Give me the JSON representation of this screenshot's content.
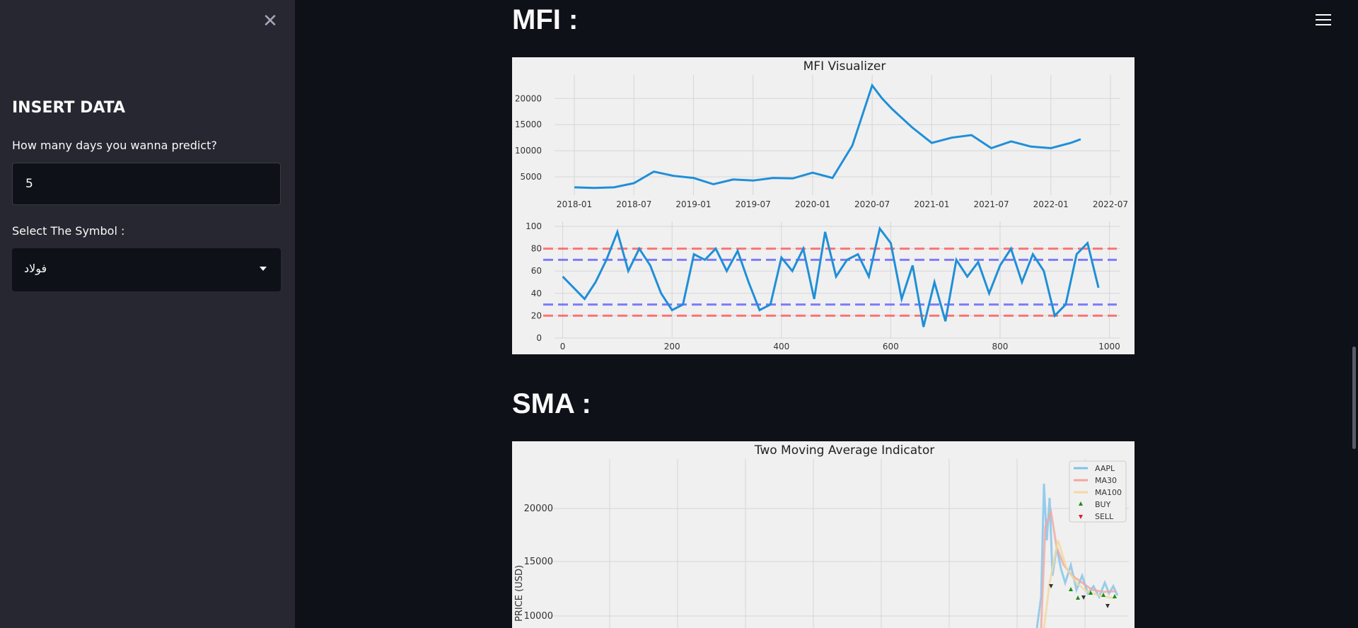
{
  "sidebar": {
    "close_icon": "close-icon",
    "title": "INSERT DATA",
    "days_label": "How many days you wanna predict?",
    "days_value": "5",
    "symbol_label": "Select The Symbol :",
    "symbol_value": "فولاد"
  },
  "main": {
    "mfi_heading": "MFI :",
    "sma_heading": "SMA :"
  },
  "colors": {
    "line": "#1f8fd8",
    "red_dash": "#ff5a5a",
    "blue_dash": "#6060ff"
  },
  "chart_data": [
    {
      "type": "line",
      "title": "MFI Visualizer",
      "x": [
        "2018-01",
        "2018-03",
        "2018-05",
        "2018-07",
        "2018-09",
        "2018-11",
        "2019-01",
        "2019-03",
        "2019-05",
        "2019-07",
        "2019-09",
        "2019-11",
        "2020-01",
        "2020-03",
        "2020-05",
        "2020-07",
        "2020-08",
        "2020-09",
        "2020-11",
        "2021-01",
        "2021-03",
        "2021-05",
        "2021-07",
        "2021-09",
        "2021-11",
        "2022-01",
        "2022-03",
        "2022-04"
      ],
      "values": [
        3000,
        2900,
        3000,
        3800,
        6000,
        5200,
        4800,
        3600,
        4500,
        4300,
        4800,
        4700,
        5800,
        4800,
        11000,
        22500,
        20000,
        18000,
        14500,
        11500,
        12500,
        13000,
        10500,
        11800,
        10800,
        10500,
        11500,
        12200
      ],
      "x_ticks": [
        "2018-01",
        "2018-07",
        "2019-01",
        "2019-07",
        "2020-01",
        "2020-07",
        "2021-01",
        "2021-07",
        "2022-01",
        "2022-07"
      ],
      "y_ticks": [
        "5000",
        "10000",
        "15000",
        "20000"
      ],
      "ylim": [
        1500,
        24500
      ]
    },
    {
      "type": "line",
      "title": "",
      "x": [
        0,
        20,
        40,
        60,
        80,
        100,
        120,
        140,
        160,
        180,
        200,
        220,
        240,
        260,
        280,
        300,
        320,
        340,
        360,
        380,
        400,
        420,
        440,
        460,
        480,
        500,
        520,
        540,
        560,
        580,
        600,
        620,
        640,
        660,
        680,
        700,
        720,
        740,
        760,
        780,
        800,
        820,
        840,
        860,
        880,
        900,
        920,
        940,
        960,
        980
      ],
      "values": [
        55,
        45,
        35,
        50,
        70,
        95,
        60,
        80,
        65,
        40,
        25,
        30,
        75,
        70,
        80,
        60,
        78,
        50,
        25,
        30,
        72,
        60,
        80,
        35,
        95,
        55,
        70,
        75,
        55,
        98,
        85,
        35,
        65,
        10,
        50,
        15,
        70,
        55,
        68,
        40,
        65,
        80,
        50,
        75,
        60,
        20,
        30,
        75,
        85,
        45
      ],
      "x_ticks": [
        "0",
        "200",
        "400",
        "600",
        "800",
        "1000"
      ],
      "y_ticks": [
        "0",
        "20",
        "40",
        "60",
        "80",
        "100"
      ],
      "hlines": [
        80,
        70,
        30,
        20
      ],
      "xlim": [
        -15,
        1020
      ],
      "ylim": [
        0,
        100
      ]
    },
    {
      "type": "line",
      "title": "Two Moving Average Indicator",
      "ylabel": "PRICE (USD)",
      "legend": [
        "AAPL",
        "MA30",
        "MA100",
        "BUY",
        "SELL"
      ],
      "legend_position": "top-right",
      "y_ticks": [
        "10000",
        "15000",
        "20000"
      ]
    }
  ]
}
